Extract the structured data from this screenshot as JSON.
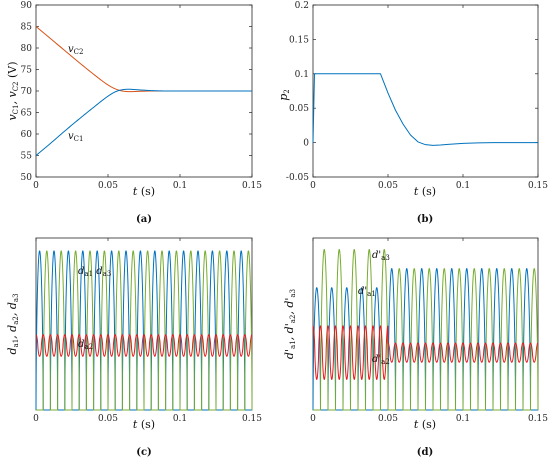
{
  "chart_data": [
    {
      "panel": "(a)",
      "type": "line",
      "xlabel": "t (s)",
      "ylabel": "vC1, vC2 (V)",
      "xlim": [
        0,
        0.15
      ],
      "ylim": [
        50,
        90
      ],
      "xticks": [
        0,
        0.05,
        0.1,
        0.15
      ],
      "xtick_labels": [
        "0",
        "0.05",
        "0.1",
        "0.15"
      ],
      "yticks": [
        50,
        55,
        60,
        65,
        70,
        75,
        80,
        85,
        90
      ],
      "ytick_labels": [
        "50",
        "55",
        "60",
        "65",
        "70",
        "75",
        "80",
        "85",
        "90"
      ],
      "annotations": [
        {
          "text": "vC2",
          "x": 0.011,
          "y": 80.5
        },
        {
          "text": "vC1",
          "x": 0.011,
          "y": 58.5
        }
      ],
      "series": [
        {
          "name": "vC2",
          "color": "#d95319",
          "x": [
            0,
            0.01,
            0.02,
            0.03,
            0.04,
            0.05,
            0.055,
            0.06,
            0.065,
            0.07,
            0.08,
            0.09,
            0.1,
            0.12,
            0.15
          ],
          "y": [
            85,
            82.2,
            79.4,
            76.6,
            73.9,
            71.4,
            70.5,
            70.0,
            69.85,
            69.9,
            70.0,
            70.0,
            70.0,
            70.0,
            70.0
          ]
        },
        {
          "name": "vC1",
          "color": "#0072bd",
          "x": [
            0,
            0.01,
            0.02,
            0.03,
            0.04,
            0.05,
            0.055,
            0.06,
            0.065,
            0.07,
            0.08,
            0.09,
            0.1,
            0.12,
            0.15
          ],
          "y": [
            55,
            57.8,
            60.7,
            63.5,
            66.2,
            68.8,
            69.8,
            70.3,
            70.4,
            70.3,
            70.1,
            70.0,
            70.0,
            70.0,
            70.0
          ]
        }
      ]
    },
    {
      "panel": "(b)",
      "type": "line",
      "xlabel": "t (s)",
      "ylabel": "p2",
      "xlim": [
        0,
        0.15
      ],
      "ylim": [
        -0.05,
        0.2
      ],
      "xticks": [
        0,
        0.05,
        0.1,
        0.15
      ],
      "xtick_labels": [
        "0",
        "0.05",
        "0.1",
        "0.15"
      ],
      "yticks": [
        -0.05,
        0,
        0.05,
        0.1,
        0.15,
        0.2
      ],
      "ytick_labels": [
        "-0.05",
        "0",
        "0.05",
        "0.1",
        "0.15",
        "0.2"
      ],
      "series": [
        {
          "name": "p2",
          "color": "#0072bd",
          "x": [
            0,
            0.001,
            0.002,
            0.045,
            0.05,
            0.055,
            0.06,
            0.065,
            0.07,
            0.075,
            0.08,
            0.085,
            0.09,
            0.1,
            0.11,
            0.12,
            0.13,
            0.15
          ],
          "y": [
            0,
            0.1,
            0.1,
            0.1,
            0.072,
            0.047,
            0.027,
            0.011,
            0.001,
            -0.003,
            -0.004,
            -0.0035,
            -0.0025,
            -0.0012,
            -0.0004,
            0,
            0,
            0
          ]
        }
      ]
    },
    {
      "panel": "(c)",
      "type": "line",
      "xlabel": "t (s)",
      "ylabel": "da1, da2, da3",
      "xlim": [
        0,
        0.15
      ],
      "ylim": [
        0,
        0.8
      ],
      "xticks": [
        0,
        0.05,
        0.1,
        0.15
      ],
      "xtick_labels": [
        "0",
        "0.05",
        "0.1",
        "0.15"
      ],
      "yticks": [],
      "annotations": [
        {
          "text": "da1 da3",
          "x": 0.035,
          "y": 0.765
        },
        {
          "text": "da2",
          "x": 0.035,
          "y": 0.37
        }
      ],
      "series": [
        {
          "name": "da1",
          "color": "#0072bd",
          "period": 0.01,
          "peak": 0.74,
          "phase": 0.0
        },
        {
          "name": "da3",
          "color": "#77ac30",
          "period": 0.01,
          "peak": 0.74,
          "phase": 0.5
        },
        {
          "name": "da2",
          "color": "#e41a1c",
          "period": 0.005,
          "mean": 0.3,
          "amplitude": 0.05
        }
      ]
    },
    {
      "panel": "(d)",
      "type": "line",
      "xlabel": "t (s)",
      "ylabel": "d'a1, d'a2, d'a3",
      "xlim": [
        0,
        0.15
      ],
      "ylim": [
        0,
        0.9
      ],
      "xticks": [
        0,
        0.05,
        0.1,
        0.15
      ],
      "xtick_labels": [
        "0",
        "0.05",
        "0.1",
        "0.15"
      ],
      "yticks": [],
      "annotations": [
        {
          "text": "d'a3",
          "x": 0.044,
          "y": 0.87
        },
        {
          "text": "d'a1",
          "x": 0.036,
          "y": 0.67
        },
        {
          "text": "d'a2",
          "x": 0.042,
          "y": 0.28
        }
      ],
      "series": [
        {
          "name": "d'a1",
          "color": "#0072bd",
          "period": 0.01,
          "peak": 0.74,
          "transient_peak": 0.64,
          "phase": 0.0
        },
        {
          "name": "d'a3",
          "color": "#77ac30",
          "period": 0.01,
          "peak": 0.74,
          "transient_peak": 0.84,
          "phase": 0.5
        },
        {
          "name": "d'a2",
          "color": "#e41a1c",
          "period": 0.005,
          "mean": 0.3,
          "amplitude": 0.05,
          "transient_mean": 0.3,
          "transient_amplitude": 0.14
        }
      ]
    }
  ]
}
